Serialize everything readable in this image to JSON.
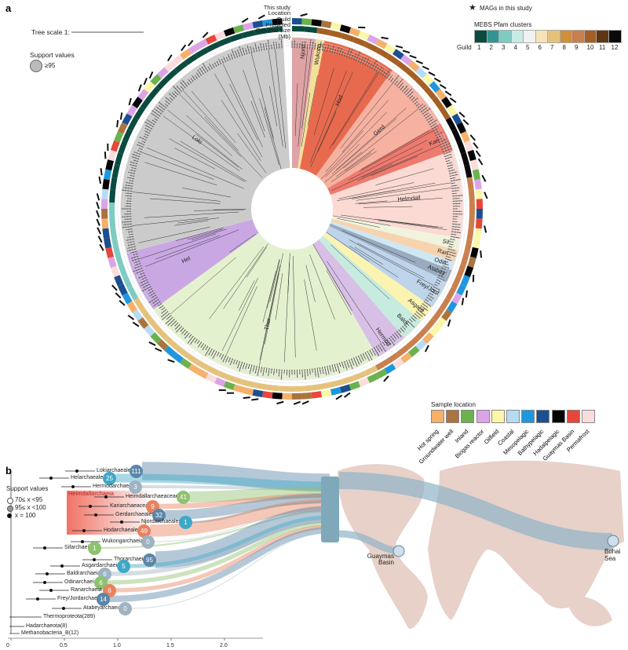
{
  "panel_a": {
    "label": "a",
    "tree_scale": "Tree scale 1:",
    "support_title": "Support values",
    "support_value": "≥95",
    "ring_labels": [
      "This study",
      "Location",
      "Guild",
      "Predicted",
      "Genome size",
      "(Mb)"
    ],
    "mags_legend": "MAGs in this study",
    "mebs_title": "MEBS Pfam clusters",
    "guild_label": "Guild",
    "guilds": [
      {
        "n": "1",
        "color": "#0b4a3f"
      },
      {
        "n": "2",
        "color": "#2f9592"
      },
      {
        "n": "3",
        "color": "#7ecbc2"
      },
      {
        "n": "4",
        "color": "#c8ebe8"
      },
      {
        "n": "5",
        "color": "#f2f2f2"
      },
      {
        "n": "6",
        "color": "#f6e3b8"
      },
      {
        "n": "7",
        "color": "#e5c27c"
      },
      {
        "n": "8",
        "color": "#cf8f3b"
      },
      {
        "n": "9",
        "color": "#c97f4e"
      },
      {
        "n": "10",
        "color": "#a55f22"
      },
      {
        "n": "11",
        "color": "#5e3712"
      },
      {
        "n": "12",
        "color": "#0a0a0a"
      }
    ],
    "sample_title": "Sample location",
    "locations": [
      {
        "name": "Hot spring",
        "color": "#f5b06a"
      },
      {
        "name": "Groundwater well",
        "color": "#a9743f"
      },
      {
        "name": "Inland",
        "color": "#6bb24f"
      },
      {
        "name": "Biogas reactor",
        "color": "#dca4e6"
      },
      {
        "name": "Oilfield",
        "color": "#fbf7a8"
      },
      {
        "name": "Coastal",
        "color": "#b6dcf3"
      },
      {
        "name": "Mesopelagic",
        "color": "#1e97df"
      },
      {
        "name": "Bathypelagic",
        "color": "#1b4f91"
      },
      {
        "name": "Hadalpelagic",
        "color": "#050505"
      },
      {
        "name": "Guaymas Basin",
        "color": "#e7463a"
      },
      {
        "name": "Permafrost",
        "color": "#fbdcdc"
      }
    ],
    "clades": [
      {
        "name": "Njord",
        "start": 0,
        "end": 8,
        "color": "#dfa3a6"
      },
      {
        "name": "Wukong",
        "start": 8,
        "end": 11,
        "color": "#f3e09a"
      },
      {
        "name": "Hod",
        "start": 11,
        "end": 36,
        "color": "#e86a4e"
      },
      {
        "name": "Gerd",
        "start": 36,
        "end": 60,
        "color": "#f6b1a1"
      },
      {
        "name": "Kari",
        "start": 60,
        "end": 70,
        "color": "#ee7a6e"
      },
      {
        "name": "Helmdall",
        "start": 70,
        "end": 100,
        "color": "#fbdad3"
      },
      {
        "name": "Sif",
        "start": 100,
        "end": 104,
        "color": "#f0f4dd"
      },
      {
        "name": "Ran",
        "start": 104,
        "end": 108,
        "color": "#f7d3b0"
      },
      {
        "name": "Odin",
        "start": 108,
        "end": 111,
        "color": "#cfe7f5"
      },
      {
        "name": "Atabey",
        "start": 111,
        "end": 115,
        "color": "#9aabc0"
      },
      {
        "name": "Frey/Jord",
        "start": 115,
        "end": 125,
        "color": "#bed4ea"
      },
      {
        "name": "Asgard",
        "start": 125,
        "end": 131,
        "color": "#fbf3b0"
      },
      {
        "name": "Baldr",
        "start": 131,
        "end": 139,
        "color": "#c7ebdf"
      },
      {
        "name": "Hermod",
        "start": 139,
        "end": 150,
        "color": "#d8bfe6"
      },
      {
        "name": "Thor",
        "start": 150,
        "end": 234,
        "color": "#e4f1cf"
      },
      {
        "name": "Hel",
        "start": 234,
        "end": 255,
        "color": "#c9a7e3"
      },
      {
        "name": "Loki",
        "start": 255,
        "end": 357,
        "color": "#cbcbcb"
      }
    ]
  },
  "panel_b": {
    "label": "b",
    "support_title": "Support values",
    "support_items": [
      "70≤ x <95",
      "95≤ x <100",
      "x = 100"
    ],
    "heimdall_group": "Heimdallarchaeia",
    "taxa": [
      {
        "name": "Lokiarchaeales",
        "count": "111",
        "color": "#5b86a8"
      },
      {
        "name": "Helarchaeales",
        "count": "25",
        "color": "#3fa8c7"
      },
      {
        "name": "Hermodarchaeia",
        "count": "3",
        "color": "#9fb3c2"
      },
      {
        "name": "Heimdallarchaeaceae",
        "count": "41",
        "color": "#8dc26f"
      },
      {
        "name": "Kariarchaeaceae",
        "count": "9",
        "color": "#e8825f"
      },
      {
        "name": "Gerdarchaeales",
        "count": "32",
        "color": "#5b86a8"
      },
      {
        "name": "Njordarchaeales",
        "count": "1",
        "color": "#3fa8c7"
      },
      {
        "name": "Hodarchaeales",
        "count": "49",
        "color": "#e8825f"
      },
      {
        "name": "Wukongarchaeia",
        "count": "0",
        "color": "#9fb3c2"
      },
      {
        "name": "Sifarchaeia",
        "count": "1",
        "color": "#8dc26f"
      },
      {
        "name": "Thorarchaeia",
        "count": "95",
        "color": "#5b86a8"
      },
      {
        "name": "Asgardarchaeia",
        "count": "5",
        "color": "#3fa8c7"
      },
      {
        "name": "Baldrarchaeia",
        "count": "6",
        "color": "#9fb3c2"
      },
      {
        "name": "Odinarchaeia",
        "count": "6",
        "color": "#8dc26f"
      },
      {
        "name": "Ranarchaeia",
        "count": "6",
        "color": "#e8825f"
      },
      {
        "name": "Frey/Jordarchaeia",
        "count": "14",
        "color": "#5b86a8"
      },
      {
        "name": "Atabeyarchaeia",
        "count": "0",
        "color": "#9fb3c2"
      }
    ],
    "outgroups": [
      "Thermoproteota(289)",
      "Hadarchaeota(8)",
      "Methanobacteria_B(12)"
    ],
    "axis_ticks": [
      "0",
      "0.5",
      "1.0",
      "1.5",
      "2.0"
    ],
    "sites": [
      "Guaymas Basin",
      "Bohai Sea"
    ]
  }
}
